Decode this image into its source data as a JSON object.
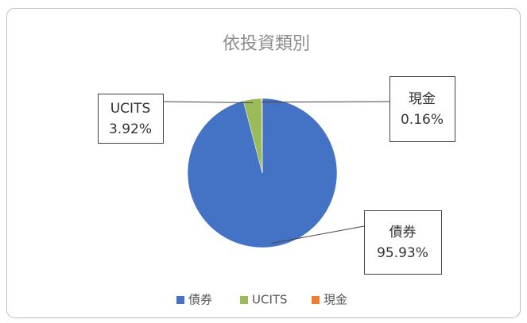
{
  "chart_data": {
    "type": "pie",
    "title": "依投資類別",
    "categories": [
      "債券",
      "UCITS",
      "現金"
    ],
    "values": [
      95.93,
      3.92,
      0.16
    ],
    "value_labels": [
      "95.93%",
      "3.92%",
      "0.16%"
    ],
    "colors": [
      "#4472c4",
      "#9bbb59",
      "#ed7d31"
    ],
    "legend": "bottom"
  }
}
